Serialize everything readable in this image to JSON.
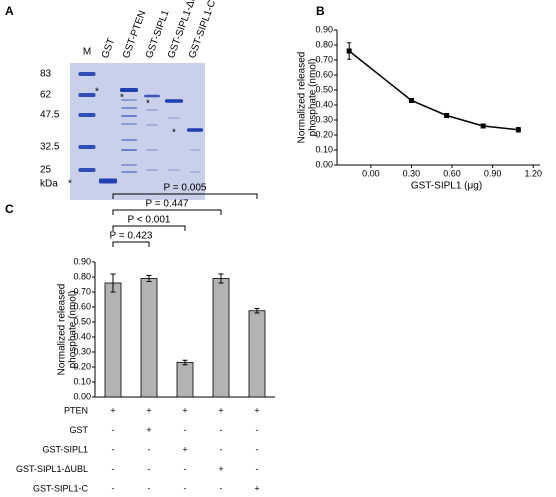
{
  "panel_labels": [
    "A",
    "B",
    "C"
  ],
  "gel": {
    "lanes": [
      "M",
      "GST",
      "GST-PTEN",
      "GST-SIPL1",
      "GST-SIPL1-ΔUBL",
      "GST-SIPL1-C"
    ],
    "markers": [
      83,
      62,
      47.5,
      32.5,
      25
    ],
    "marker_unit": "kDa",
    "asterisks": [
      "*",
      "*",
      "*",
      "*",
      "*"
    ]
  },
  "chart_data": [
    {
      "type": "line",
      "x": [
        -0.16,
        0.3,
        0.56,
        0.83,
        1.09
      ],
      "values": [
        0.76,
        0.43,
        0.33,
        0.26,
        0.235
      ],
      "errors": [
        0.055,
        0.008,
        0.008,
        0.008,
        0.015
      ],
      "color": "#000000",
      "xlabel": "GST-SIPL1 (μg)",
      "ylabel": [
        "Normalized released",
        "phosphate (nmol)"
      ],
      "xlim": [
        -0.25,
        1.25
      ],
      "xticks": [
        {
          "value": 0,
          "label": "0.00"
        },
        {
          "value": 0.3,
          "label": "0.30"
        },
        {
          "value": 0.6,
          "label": "0.60"
        },
        {
          "value": 0.9,
          "label": "0.90"
        },
        {
          "value": 1.2,
          "label": "1.20"
        }
      ],
      "ylim": [
        0,
        0.9
      ],
      "yticks": [
        {
          "value": 0,
          "label": "0.00"
        },
        {
          "value": 0.1,
          "label": "0.10"
        },
        {
          "value": 0.2,
          "label": "0.20"
        },
        {
          "value": 0.3,
          "label": "0.30"
        },
        {
          "value": 0.4,
          "label": "0.40"
        },
        {
          "value": 0.5,
          "label": "0.50"
        },
        {
          "value": 0.6,
          "label": "0.60"
        },
        {
          "value": 0.7,
          "label": "0.70"
        },
        {
          "value": 0.8,
          "label": "0.80"
        },
        {
          "value": 0.9,
          "label": "0.90"
        }
      ]
    },
    {
      "type": "bar",
      "values": [
        0.76,
        0.79,
        0.23,
        0.79,
        0.575
      ],
      "errors": [
        0.06,
        0.02,
        0.015,
        0.03,
        0.015
      ],
      "color": "#b3b3b3",
      "ylabel": [
        "Normalized released",
        "phosphate (nmol)"
      ],
      "ylim": [
        0,
        0.9
      ],
      "yticks": [
        {
          "value": 0,
          "label": "0.00"
        },
        {
          "value": 0.1,
          "label": "0.10"
        },
        {
          "value": 0.2,
          "label": "0.20"
        },
        {
          "value": 0.3,
          "label": "0.30"
        },
        {
          "value": 0.4,
          "label": "0.40"
        },
        {
          "value": 0.5,
          "label": "0.50"
        },
        {
          "value": 0.6,
          "label": "0.60"
        },
        {
          "value": 0.7,
          "label": "0.70"
        },
        {
          "value": 0.8,
          "label": "0.80"
        },
        {
          "value": 0.9,
          "label": "0.90"
        }
      ],
      "annotations": [
        "P = 0.423",
        "P < 0.001",
        "P = 0.447",
        "P = 0.005"
      ],
      "conditions": [
        {
          "name": "PTEN",
          "signs": [
            "+",
            "+",
            "+",
            "+",
            "+"
          ]
        },
        {
          "name": "GST",
          "signs": [
            "-",
            "+",
            "-",
            "-",
            "-"
          ]
        },
        {
          "name": "GST-SIPL1",
          "signs": [
            "-",
            "-",
            "+",
            "-",
            "-"
          ]
        },
        {
          "name": "GST-SIPL1-ΔUBL",
          "signs": [
            "-",
            "-",
            "-",
            "+",
            "-"
          ]
        },
        {
          "name": "GST-SIPL1-C",
          "signs": [
            "-",
            "-",
            "-",
            "-",
            "+"
          ]
        }
      ]
    }
  ]
}
